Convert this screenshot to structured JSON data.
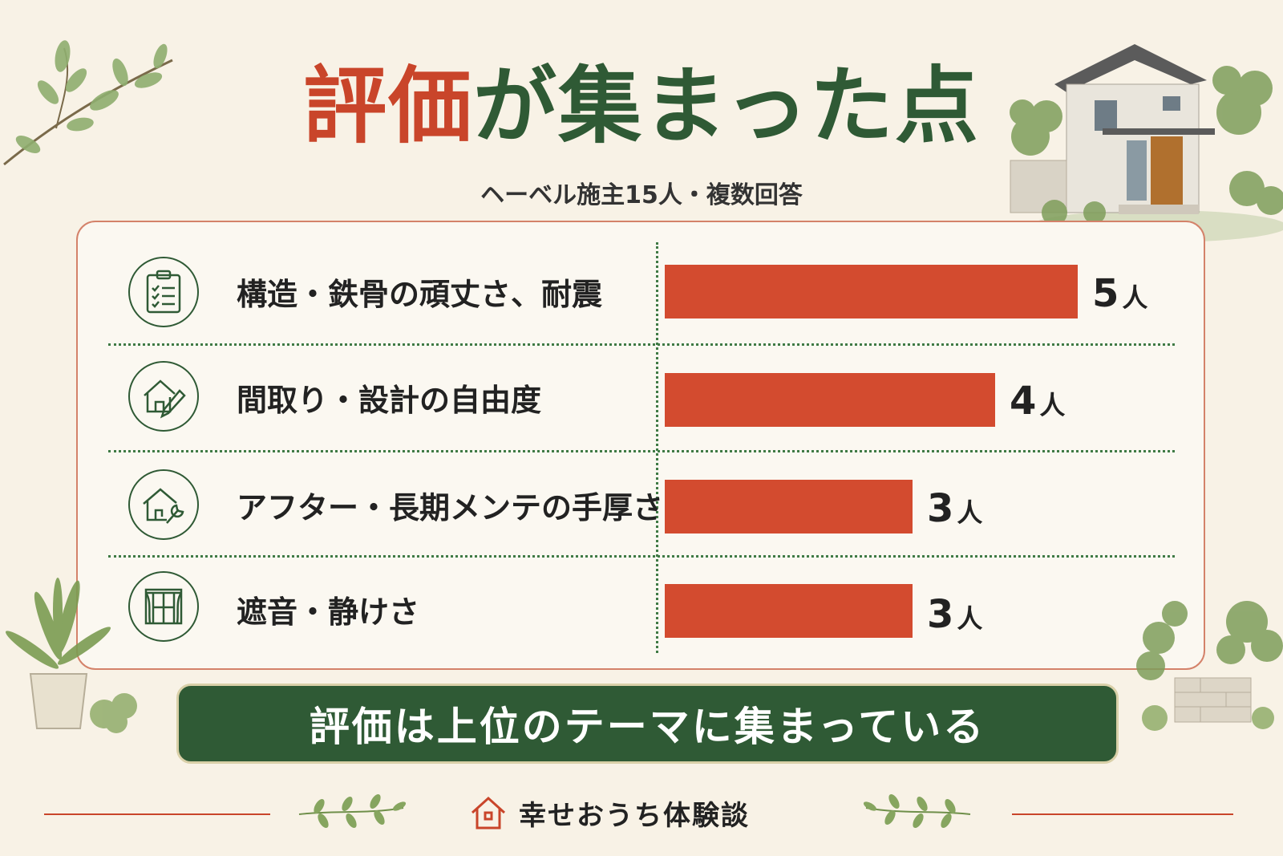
{
  "title": {
    "accent": "評価",
    "main": "が集まった点"
  },
  "subtitle": "ヘーベル施主15人・複数回答",
  "chart_data": {
    "type": "bar",
    "orientation": "horizontal",
    "unit": "人",
    "categories": [
      "構造・鉄骨の頑丈さ、耐震",
      "間取り・設計の自由度",
      "アフター・長期メンテの手厚さ",
      "遮音・静けさ"
    ],
    "values": [
      5,
      4,
      3,
      3
    ],
    "icons": [
      "clipboard-checklist-icon",
      "house-pencil-icon",
      "house-wrench-icon",
      "window-curtain-icon"
    ],
    "bar_color": "#d34b2f"
  },
  "banner": {
    "text": "評価は上位のテーマに集まっている"
  },
  "footer": {
    "brand": "幸せおうち体験談"
  },
  "colors": {
    "accent": "#c9452a",
    "green": "#2f5a35",
    "background": "#f8f2e6"
  }
}
